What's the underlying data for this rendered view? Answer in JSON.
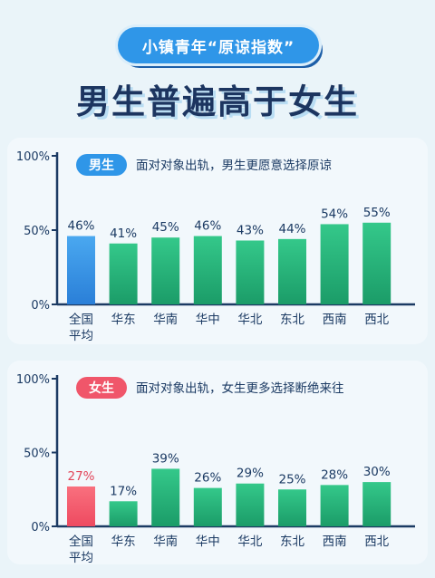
{
  "header": {
    "badge_text": "小镇青年“原谅指数”",
    "headline": "男生普遍高于女生"
  },
  "colors": {
    "male_pill": "#2f96e8",
    "female_pill": "#f0566a",
    "male_highlight": "#2f96e8",
    "female_highlight": "#f0566a",
    "region_bar": "#28b67e",
    "axis": "#1b3a63"
  },
  "chart_data": [
    {
      "type": "bar",
      "pill_label": "男生",
      "subtitle": "面对对象出轨，男生更愿意选择原谅",
      "categories": [
        "全国\n平均",
        "华东",
        "华南",
        "华中",
        "华北",
        "东北",
        "西南",
        "西北"
      ],
      "values": [
        46,
        41,
        45,
        46,
        43,
        44,
        54,
        55
      ],
      "value_labels": [
        "46%",
        "41%",
        "45%",
        "46%",
        "43%",
        "44%",
        "54%",
        "55%"
      ],
      "y_ticks": [
        "0%",
        "50%",
        "100%"
      ],
      "ylim": [
        0,
        100
      ],
      "highlight_index": 0,
      "grid": false
    },
    {
      "type": "bar",
      "pill_label": "女生",
      "subtitle": "面对对象出轨，女生更多选择断绝来往",
      "categories": [
        "全国\n平均",
        "华东",
        "华南",
        "华中",
        "华北",
        "东北",
        "西南",
        "西北"
      ],
      "values": [
        27,
        17,
        39,
        26,
        29,
        25,
        28,
        30
      ],
      "value_labels": [
        "27%",
        "17%",
        "39%",
        "26%",
        "29%",
        "25%",
        "28%",
        "30%"
      ],
      "y_ticks": [
        "0%",
        "50%",
        "100%"
      ],
      "ylim": [
        0,
        100
      ],
      "highlight_index": 0,
      "grid": false
    }
  ]
}
